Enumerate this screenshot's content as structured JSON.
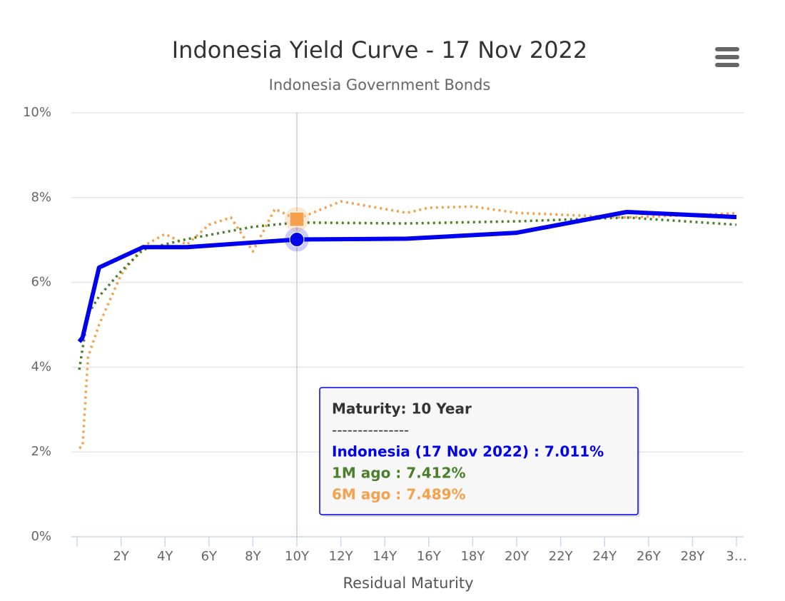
{
  "chart_data": {
    "type": "line",
    "title": "Indonesia Yield Curve - 17 Nov 2022",
    "subtitle": "Indonesia Government Bonds",
    "x_label": "Residual Maturity",
    "xlim": [
      0,
      30
    ],
    "xticks": [
      {
        "value": 2,
        "label": "2Y"
      },
      {
        "value": 4,
        "label": "4Y"
      },
      {
        "value": 6,
        "label": "6Y"
      },
      {
        "value": 8,
        "label": "8Y"
      },
      {
        "value": 10,
        "label": "10Y"
      },
      {
        "value": 12,
        "label": "12Y"
      },
      {
        "value": 14,
        "label": "14Y"
      },
      {
        "value": 16,
        "label": "16Y"
      },
      {
        "value": 18,
        "label": "18Y"
      },
      {
        "value": 20,
        "label": "20Y"
      },
      {
        "value": 22,
        "label": "22Y"
      },
      {
        "value": 24,
        "label": "24Y"
      },
      {
        "value": 26,
        "label": "26Y"
      },
      {
        "value": 28,
        "label": "28Y"
      },
      {
        "value": 30,
        "label": "3…"
      }
    ],
    "ylim": [
      0,
      10
    ],
    "yticks": [
      {
        "value": 0,
        "label": "0%"
      },
      {
        "value": 2,
        "label": "2%"
      },
      {
        "value": 4,
        "label": "4%"
      },
      {
        "value": 6,
        "label": "6%"
      },
      {
        "value": 8,
        "label": "8%"
      },
      {
        "value": 10,
        "label": "10%"
      }
    ],
    "grid": true,
    "highlight_x": 10,
    "series": [
      {
        "color": "#0000ee",
        "dash": "solid",
        "width": 6,
        "x": [
          0.1,
          0.25,
          1,
          3,
          5,
          10,
          15,
          20,
          25,
          30
        ],
        "values": [
          4.6,
          4.7,
          6.35,
          6.83,
          6.83,
          7.011,
          7.03,
          7.17,
          7.66,
          7.54
        ]
      },
      {
        "color": "#4a7f2c",
        "dash": "dotted",
        "width": 3.5,
        "x": [
          0.1,
          0.5,
          1,
          2,
          3,
          5,
          8,
          10,
          15,
          20,
          25,
          30
        ],
        "values": [
          3.94,
          5.25,
          5.67,
          6.26,
          6.77,
          7.02,
          7.31,
          7.412,
          7.39,
          7.44,
          7.53,
          7.36
        ]
      },
      {
        "color": "#f5a04c",
        "dash": "dotted",
        "width": 3.5,
        "x": [
          0.1,
          0.25,
          0.5,
          1,
          2,
          3,
          4,
          5,
          6,
          7,
          8,
          9,
          10,
          12,
          15,
          16,
          18,
          20,
          25,
          30
        ],
        "values": [
          2.09,
          2.14,
          4.24,
          5.0,
          6.18,
          6.85,
          7.14,
          6.89,
          7.36,
          7.53,
          6.73,
          7.73,
          7.489,
          7.91,
          7.64,
          7.76,
          7.79,
          7.64,
          7.53,
          7.63
        ]
      }
    ],
    "tooltip": {
      "title": "Maturity: 10 Year",
      "separator": "---------------",
      "lines": [
        "Indonesia (17 Nov 2022) : 7.011%",
        "1M ago : 7.412%",
        "6M ago : 7.489%"
      ]
    }
  }
}
